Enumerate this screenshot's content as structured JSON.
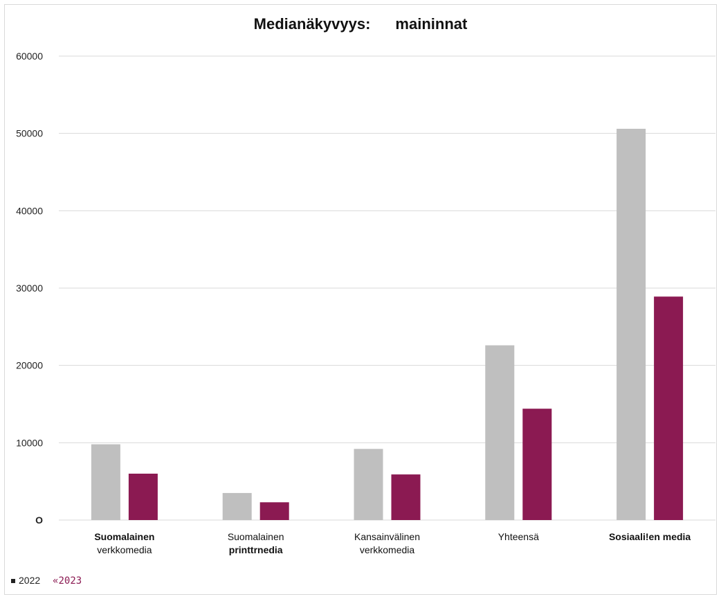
{
  "title": {
    "part1": "Medianäkyvyys:",
    "part2": "maininnat"
  },
  "legend": {
    "item1": "2022",
    "item2": "«2023"
  },
  "colors": {
    "series1": "#bfbfbf",
    "series2": "#8b1a52",
    "grid": "#d9d9d9"
  },
  "categories": [
    {
      "line1": "Suomalainen",
      "line2": "verkkomedia",
      "bold": "line1"
    },
    {
      "line1": "Suomalainen",
      "line2": "printtrnedia",
      "bold": "line2"
    },
    {
      "line1": "Kansainvälinen",
      "line2": "verkkomedia",
      "bold": "none"
    },
    {
      "line1": "Yhteensä",
      "line2": "",
      "bold": "none"
    },
    {
      "line1": "Sosiaali!en media",
      "line2": "",
      "bold": "line1"
    }
  ],
  "chart_data": {
    "type": "bar",
    "title": "Medianäkyvyys: maininnat",
    "categories": [
      "Suomalainen verkkomedia",
      "Suomalainen printtrnedia",
      "Kansainvälinen verkkomedia",
      "Yhteensä",
      "Sosiaali!en media"
    ],
    "series": [
      {
        "name": "2022",
        "values": [
          9800,
          3500,
          9200,
          22600,
          50600
        ]
      },
      {
        "name": "2023",
        "values": [
          6000,
          2300,
          5900,
          14400,
          28900
        ]
      }
    ],
    "yticks": [
      "O",
      "10000",
      "20000",
      "30000",
      "40000",
      "50000",
      "60000"
    ],
    "ylim": [
      0,
      60000
    ],
    "grid": true,
    "legend": "bottom-left"
  }
}
